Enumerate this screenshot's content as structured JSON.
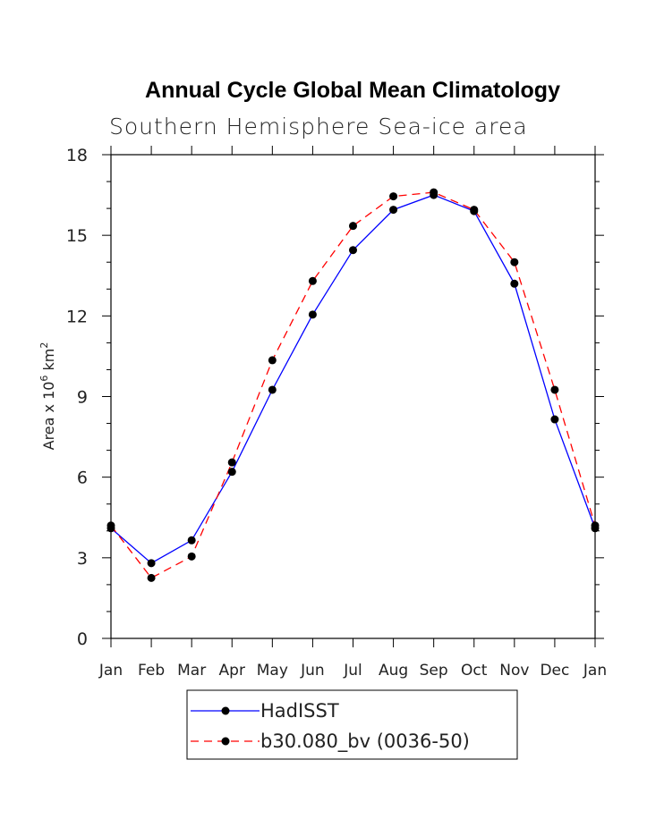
{
  "chart_data": {
    "type": "line",
    "title": "Annual Cycle Global Mean Climatology",
    "subtitle": "Southern Hemisphere Sea-ice area",
    "ylabel": "Area x 10^6 km^2",
    "ylabel_parts": {
      "base": "Area x 10",
      "exp1": "6",
      "mid": " km",
      "exp2": "2"
    },
    "xlabel": "",
    "categories": [
      "Jan",
      "Feb",
      "Mar",
      "Apr",
      "May",
      "Jun",
      "Jul",
      "Aug",
      "Sep",
      "Oct",
      "Nov",
      "Dec",
      "Jan"
    ],
    "ylim": [
      0,
      18
    ],
    "yticks": [
      0,
      3,
      6,
      9,
      12,
      15,
      18
    ],
    "grid": false,
    "legend_position": "bottom-center",
    "series": [
      {
        "name": "HadISST",
        "color": "#0000ff",
        "dash": "solid",
        "values": [
          4.1,
          2.8,
          3.65,
          6.2,
          9.25,
          12.05,
          14.45,
          15.95,
          16.5,
          15.9,
          13.2,
          8.15,
          4.1
        ]
      },
      {
        "name": "b30.080_bv (0036-50)",
        "color": "#ff0000",
        "dash": "dashed",
        "values": [
          4.2,
          2.25,
          3.05,
          6.55,
          10.35,
          13.3,
          15.35,
          16.45,
          16.6,
          15.95,
          14.0,
          9.25,
          4.2
        ]
      }
    ]
  }
}
